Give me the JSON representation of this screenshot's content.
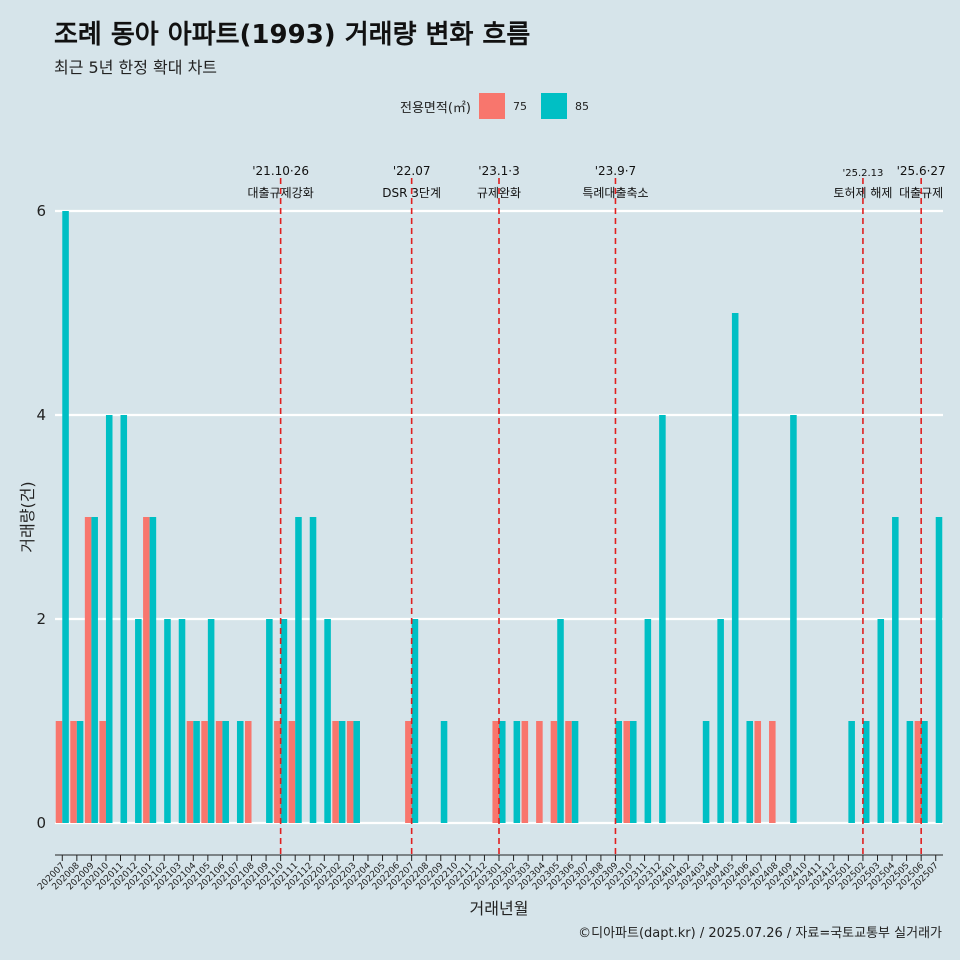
{
  "chart_data": {
    "type": "bar",
    "title": "조례 동아 아파트(1993) 거래량 변화 흐름",
    "subtitle": "최근 5년 한정 확대 차트",
    "xlabel": "거래년월",
    "ylabel": "거래량(건)",
    "ylim": [
      0,
      6
    ],
    "yticks": [
      0,
      2,
      4,
      6
    ],
    "grid": true,
    "legend": {
      "title": "전용면적(㎡)",
      "position": "top",
      "entries": [
        {
          "name": "75",
          "color": "#f8766d"
        },
        {
          "name": "85",
          "color": "#00bfc4"
        }
      ]
    },
    "categories": [
      "202007",
      "202008",
      "202009",
      "202010",
      "202011",
      "202012",
      "202101",
      "202102",
      "202103",
      "202104",
      "202105",
      "202106",
      "202107",
      "202108",
      "202109",
      "202110",
      "202111",
      "202112",
      "202201",
      "202202",
      "202203",
      "202204",
      "202205",
      "202206",
      "202207",
      "202208",
      "202209",
      "202210",
      "202211",
      "202212",
      "202301",
      "202302",
      "202303",
      "202304",
      "202305",
      "202306",
      "202307",
      "202308",
      "202309",
      "202310",
      "202311",
      "202312",
      "202401",
      "202402",
      "202403",
      "202404",
      "202405",
      "202406",
      "202407",
      "202408",
      "202409",
      "202410",
      "202411",
      "202412",
      "202501",
      "202502",
      "202503",
      "202504",
      "202505",
      "202506",
      "202507"
    ],
    "series": [
      {
        "name": "75",
        "color": "#f8766d",
        "values": [
          1,
          1,
          3,
          1,
          0,
          0,
          3,
          0,
          0,
          1,
          1,
          1,
          0,
          1,
          0,
          1,
          1,
          0,
          0,
          1,
          1,
          0,
          0,
          0,
          1,
          0,
          0,
          0,
          0,
          0,
          1,
          0,
          1,
          1,
          1,
          1,
          0,
          0,
          0,
          1,
          0,
          0,
          0,
          0,
          0,
          0,
          0,
          0,
          1,
          1,
          0,
          0,
          0,
          0,
          0,
          0,
          0,
          0,
          0,
          1,
          0
        ]
      },
      {
        "name": "85",
        "color": "#00bfc4",
        "values": [
          6,
          1,
          3,
          4,
          4,
          2,
          3,
          2,
          2,
          1,
          2,
          1,
          1,
          0,
          2,
          2,
          3,
          3,
          2,
          1,
          1,
          0,
          0,
          0,
          2,
          0,
          1,
          0,
          0,
          0,
          1,
          1,
          0,
          0,
          2,
          1,
          0,
          0,
          1,
          1,
          2,
          4,
          0,
          0,
          1,
          2,
          5,
          1,
          0,
          0,
          4,
          0,
          0,
          0,
          1,
          1,
          2,
          3,
          1,
          1,
          3
        ]
      }
    ],
    "annotations": [
      {
        "month": "202110",
        "date": "'21.10·26",
        "label": "대출규제강화"
      },
      {
        "month": "202207",
        "date": "'22.07",
        "label": "DSR 3단계"
      },
      {
        "month": "202301",
        "date": "'23.1·3",
        "label": "규제완화"
      },
      {
        "month": "202309",
        "date": "'23.9·7",
        "label": "특례대출축소"
      },
      {
        "month": "202502",
        "date": "'25.2.13",
        "label": "토허제 해제"
      },
      {
        "month": "202506",
        "date": "'25.6·27",
        "label": "대출규제"
      }
    ]
  },
  "caption": "©디아파트(dapt.kr) / 2025.07.26 / 자료=국토교통부 실거래가"
}
